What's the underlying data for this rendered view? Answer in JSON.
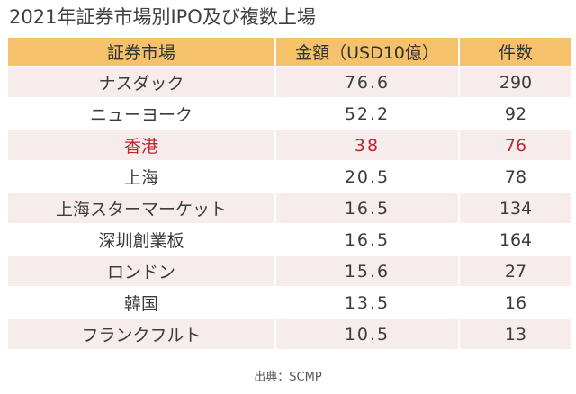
{
  "title": "2021年証券市場別IPO及び複数上場",
  "table": {
    "headers": [
      "証券市場",
      "金額（USD10億）",
      "件数"
    ],
    "rows": [
      [
        "ナスダック",
        "76.6",
        "290"
      ],
      [
        "ニューヨーク",
        "52.2",
        "92"
      ],
      [
        "香港",
        "38",
        "76"
      ],
      [
        "上海",
        "20.5",
        "78"
      ],
      [
        "上海スターマーケット",
        "16.5",
        "134"
      ],
      [
        "深圳創業板",
        "16.5",
        "164"
      ],
      [
        "ロンドン",
        "15.6",
        "27"
      ],
      [
        "韓国",
        "13.5",
        "16"
      ],
      [
        "フランクフルト",
        "10.5",
        "13"
      ]
    ],
    "highlight_row": "香港"
  },
  "source": "出典：SCMP",
  "colors": {
    "header_bg": "#f5c26b",
    "stripe_bg": "#f7ecec",
    "highlight_text": "#c0262d"
  }
}
